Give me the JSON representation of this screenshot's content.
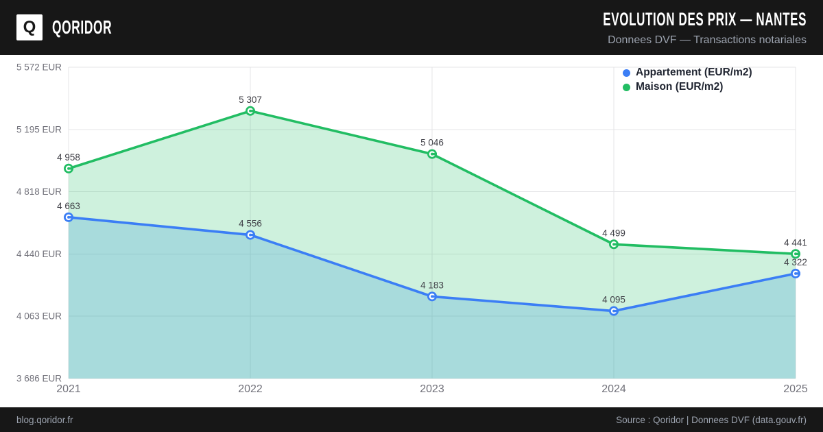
{
  "header": {
    "logo_letter": "Q",
    "brand": "QORIDOR",
    "title": "EVOLUTION DES PRIX — NANTES",
    "subtitle": "Donnees DVF — Transactions notariales"
  },
  "footer": {
    "left": "blog.qoridor.fr",
    "right": "Source : Qoridor | Donnees DVF (data.gouv.fr)"
  },
  "colors": {
    "header_bg": "#171717",
    "footer_bg": "#171717",
    "accent_blue": "#3b7ef5",
    "accent_green": "#22bd63",
    "blue_area_fill": "rgba(52,152,219,0.24)",
    "green_area_fill": "rgba(34,189,99,0.22)",
    "grid": "#e4e4e7",
    "axis_text": "#71717a",
    "point_label_text": "#3f3f46",
    "legend_text": "#1f2430",
    "muted_text": "#9ca3af"
  },
  "chart_data": {
    "type": "line",
    "title": "EVOLUTION DES PRIX — NANTES",
    "subtitle": "Donnees DVF — Transactions notariales",
    "x_categories": [
      "2021",
      "2022",
      "2023",
      "2024",
      "2025"
    ],
    "series": [
      {
        "id": "appartement",
        "name": "Appartement (EUR/m2)",
        "color": "#3b7ef5",
        "fill": "rgba(52,152,219,0.24)",
        "values": [
          4663,
          4556,
          4183,
          4095,
          4322
        ],
        "value_labels": [
          "4 663",
          "4 556",
          "4 183",
          "4 095",
          "4 322"
        ]
      },
      {
        "id": "maison",
        "name": "Maison (EUR/m2)",
        "color": "#22bd63",
        "fill": "rgba(34,189,99,0.22)",
        "values": [
          4958,
          5307,
          5046,
          4499,
          4441
        ],
        "value_labels": [
          "4 958",
          "5 307",
          "5 046",
          "4 499",
          "4 441"
        ]
      }
    ],
    "y_axis": {
      "min": 3686,
      "max": 5572,
      "ticks": [
        {
          "value": 5572,
          "label": "5 572 EUR"
        },
        {
          "value": 5195,
          "label": "5 195 EUR"
        },
        {
          "value": 4818,
          "label": "4 818 EUR"
        },
        {
          "value": 4440,
          "label": "4 440 EUR"
        },
        {
          "value": 4063,
          "label": "4 063 EUR"
        },
        {
          "value": 3686,
          "label": "3 686 EUR"
        }
      ]
    },
    "grid": true,
    "area_fill": true,
    "legend_position": "top-right"
  }
}
